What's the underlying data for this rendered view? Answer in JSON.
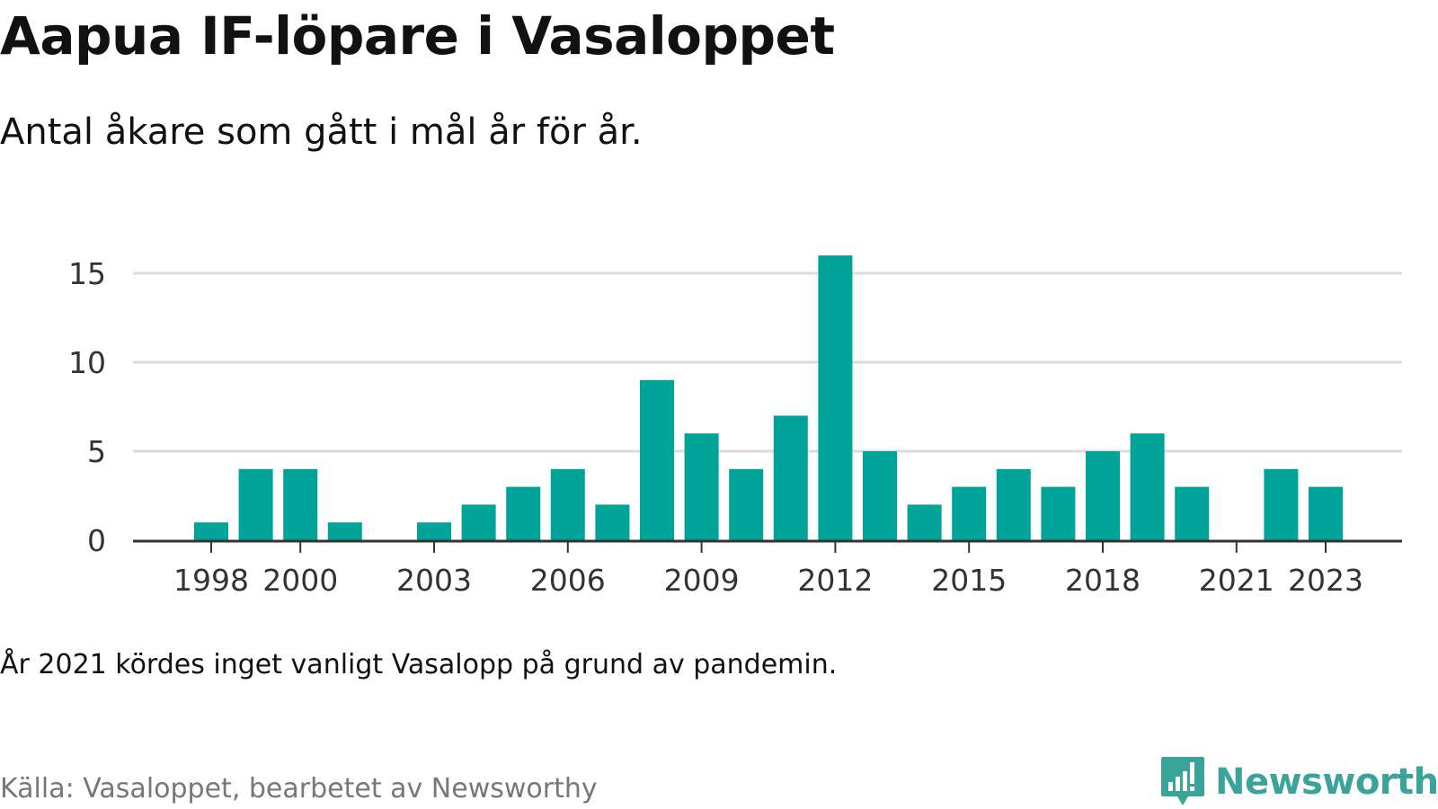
{
  "header": {
    "title": "Aapua IF-löpare i Vasaloppet",
    "subtitle": "Antal åkare som gått i mål år för år."
  },
  "footer": {
    "note": "År 2021 kördes inget vanligt Vasalopp på grund av pandemin.",
    "source": "Källa: Vasaloppet, bearbetet av Newsworthy",
    "brand": "Newsworthy",
    "brand_icon": "newsworthy-logo-icon"
  },
  "colors": {
    "bar": "#00a398",
    "grid": "#dddddd",
    "axis": "#333333",
    "brand": "#3aa39a"
  },
  "chart_data": {
    "type": "bar",
    "title": "Aapua IF-löpare i Vasaloppet",
    "subtitle": "Antal åkare som gått i mål år för år.",
    "xlabel": "",
    "ylabel": "",
    "ylim": [
      0,
      16
    ],
    "yticks": [
      0,
      5,
      10,
      15
    ],
    "xtick_labels": [
      "1998",
      "2000",
      "2003",
      "2006",
      "2009",
      "2012",
      "2015",
      "2018",
      "2021",
      "2023"
    ],
    "grid": true,
    "categories": [
      "1998",
      "1999",
      "2000",
      "2001",
      "2002",
      "2003",
      "2004",
      "2005",
      "2006",
      "2007",
      "2008",
      "2009",
      "2010",
      "2011",
      "2012",
      "2013",
      "2014",
      "2015",
      "2016",
      "2017",
      "2018",
      "2019",
      "2020",
      "2021",
      "2022",
      "2023"
    ],
    "values": [
      1,
      4,
      4,
      1,
      0,
      1,
      2,
      3,
      4,
      2,
      9,
      6,
      4,
      7,
      16,
      5,
      2,
      3,
      4,
      3,
      5,
      6,
      3,
      0,
      4,
      3
    ]
  }
}
